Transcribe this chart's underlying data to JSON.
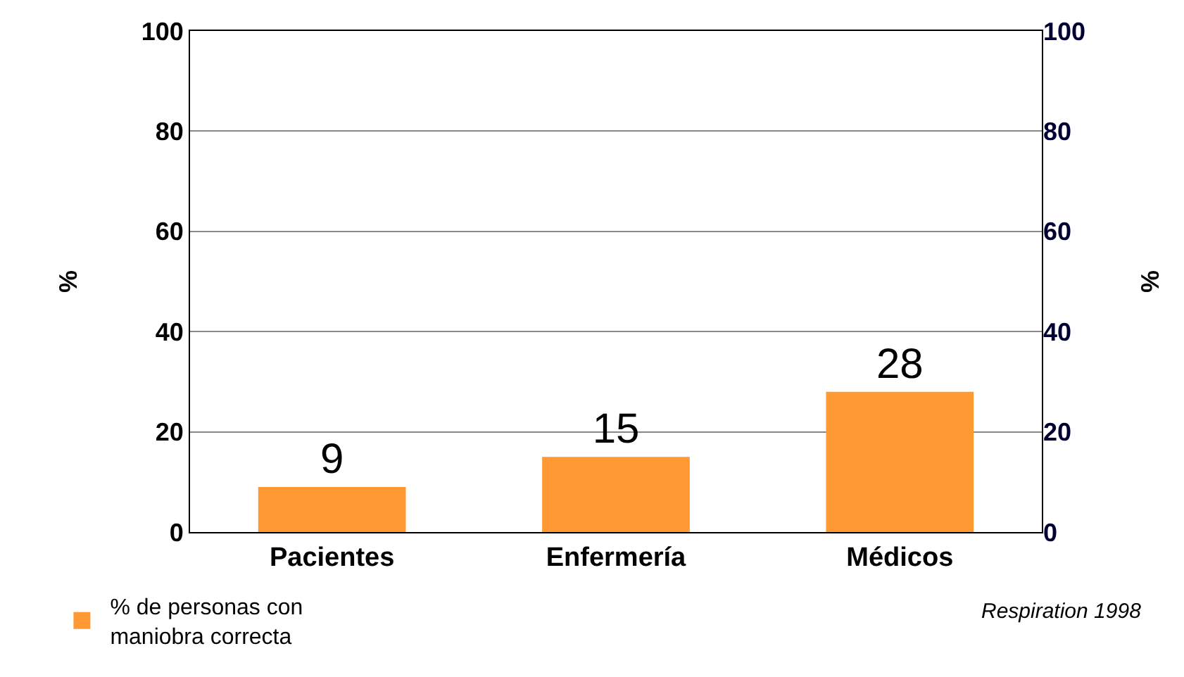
{
  "chart_data": {
    "type": "bar",
    "categories": [
      "Pacientes",
      "Enfermería",
      "Médicos"
    ],
    "series": [
      {
        "name": "% de personas con\nmaniobra correcta",
        "color": "#ff9933",
        "values": [
          9,
          15,
          28
        ]
      }
    ],
    "ylabel": "%",
    "y2label": "%",
    "ylim": [
      0,
      100
    ],
    "yticks": [
      0,
      20,
      40,
      60,
      80,
      100
    ],
    "y2lim": [
      0,
      100
    ],
    "y2ticks": [
      0,
      20,
      40,
      60,
      80,
      100
    ],
    "grid": "y",
    "data_labels": true,
    "legend": "bottom left",
    "annotations": [
      "Respiration 1998"
    ]
  }
}
